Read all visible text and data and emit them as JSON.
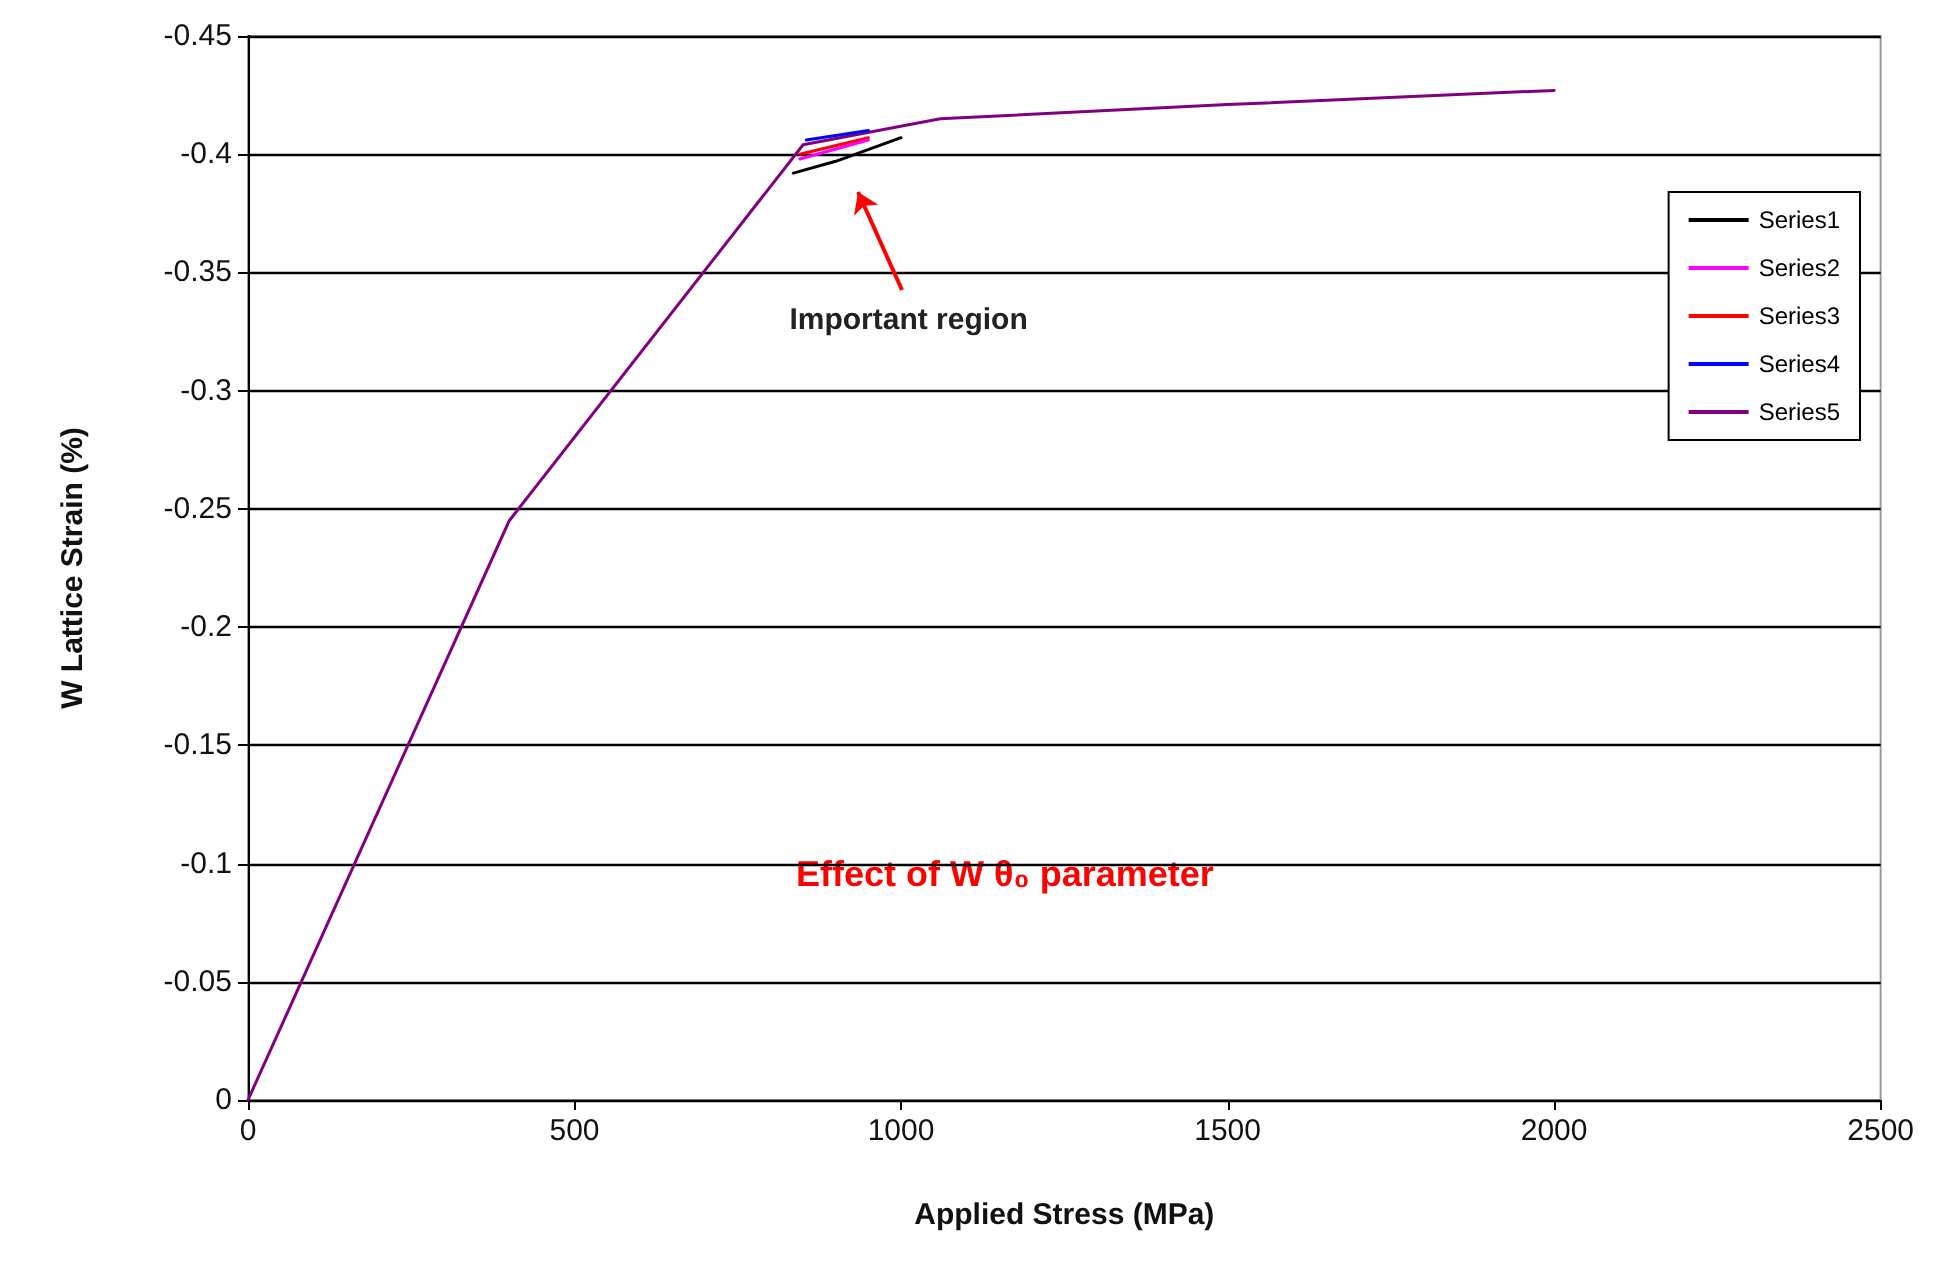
{
  "chart_data": {
    "type": "line",
    "xlabel": "Applied Stress (MPa)",
    "ylabel": "W Lattice Strain (%)",
    "xlim": [
      0,
      2500
    ],
    "xticks": [
      0,
      500,
      1000,
      1500,
      2000,
      2500
    ],
    "ylim": [
      0,
      -0.45
    ],
    "yticks": [
      0,
      -0.05,
      -0.1,
      -0.15,
      -0.2,
      -0.25,
      -0.3,
      -0.35,
      -0.4,
      -0.45
    ],
    "grid": "y",
    "legend": "right",
    "marker": "none",
    "line_style": "solid",
    "series": [
      {
        "name": "Series1",
        "color": "#000000",
        "x": [
          835,
          900,
          1000
        ],
        "values": [
          -0.392,
          -0.397,
          -0.407
        ]
      },
      {
        "name": "Series2",
        "color": "#ff00ff",
        "x": [
          845,
          950
        ],
        "values": [
          -0.398,
          -0.406
        ]
      },
      {
        "name": "Series3",
        "color": "#ff0000",
        "x": [
          845,
          950
        ],
        "values": [
          -0.4,
          -0.407
        ]
      },
      {
        "name": "Series4",
        "color": "#0000ff",
        "x": [
          855,
          950
        ],
        "values": [
          -0.406,
          -0.41
        ]
      },
      {
        "name": "Series5",
        "color": "#800080",
        "x": [
          0,
          400,
          850,
          1060,
          1500,
          2000
        ],
        "values": [
          0,
          -0.245,
          -0.404,
          -0.415,
          -0.421,
          -0.427
        ]
      }
    ],
    "annotations": [
      "Important region",
      "Effect of W θ₀ parameter"
    ]
  }
}
